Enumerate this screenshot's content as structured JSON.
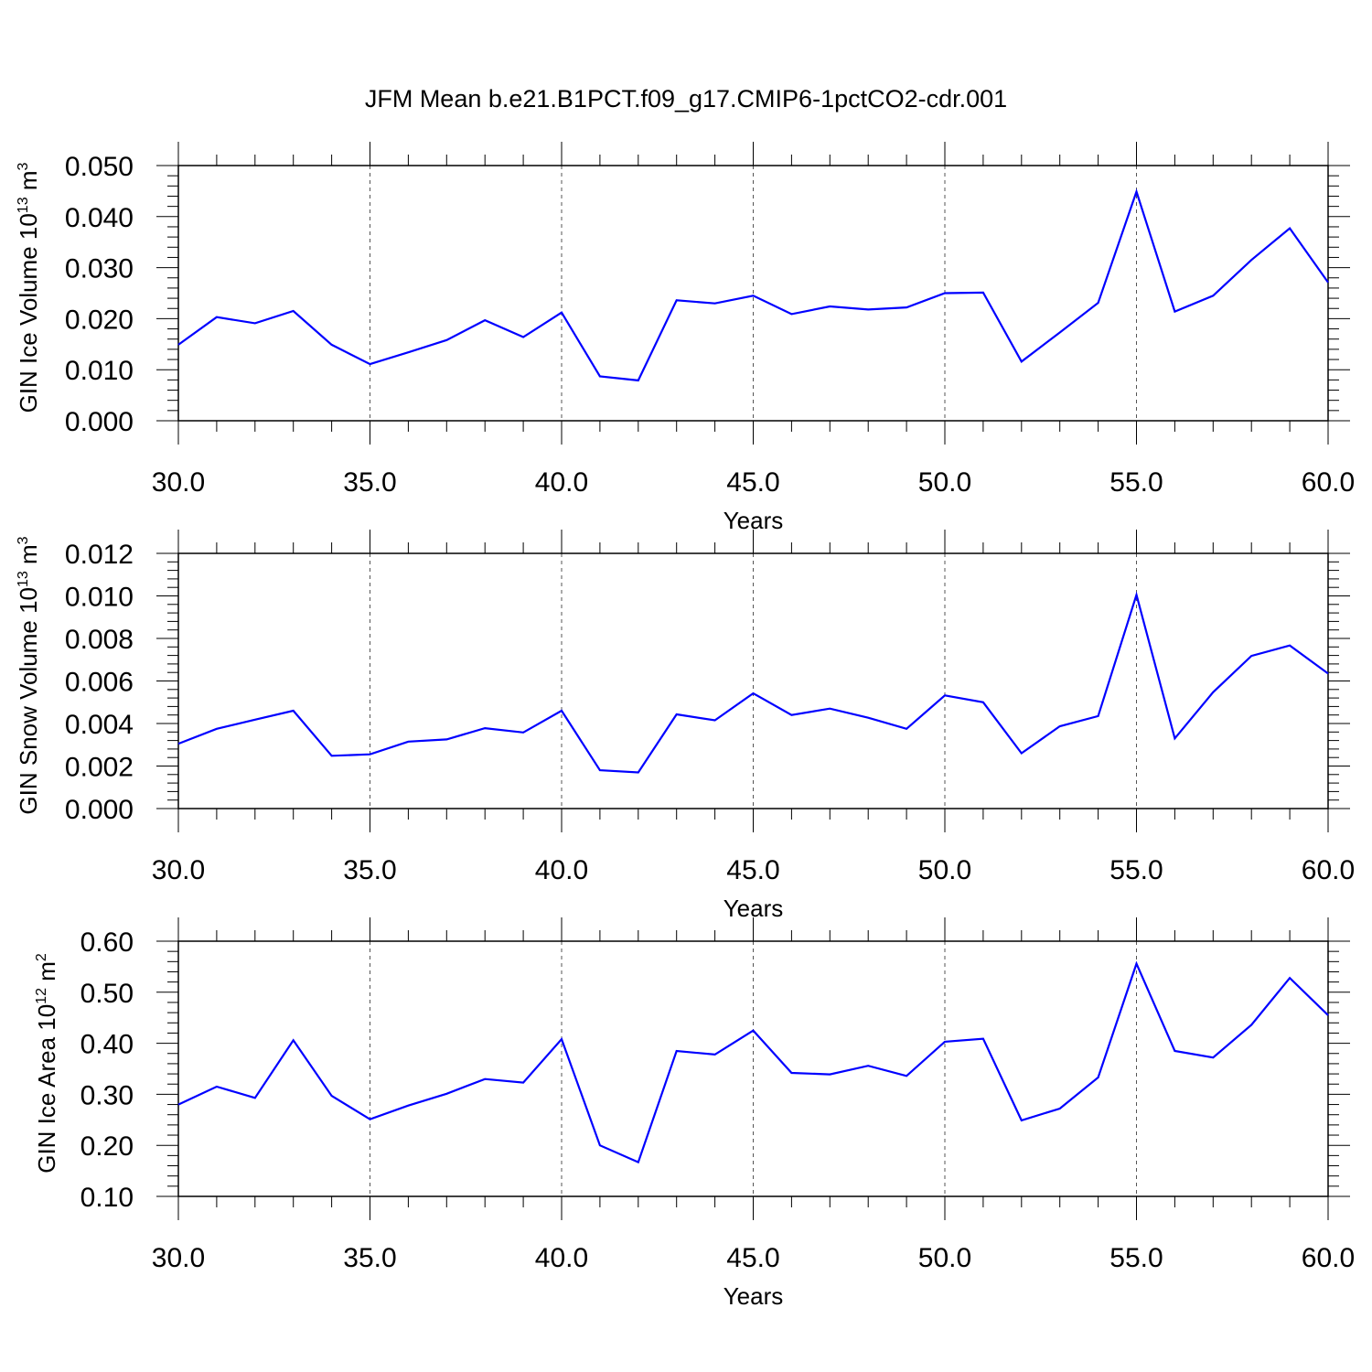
{
  "chart_data": [
    {
      "type": "line",
      "title": "JFM Mean b.e21.B1PCT.f09_g17.CMIP6-1pctCO2-cdr.001",
      "ylabel": {
        "main": "GIN Ice Volume 10",
        "exp": "13",
        "unit": " m",
        "unit_exp": "3"
      },
      "xlabel": "Years",
      "xlim": [
        30,
        60
      ],
      "ylim": [
        0.0,
        0.05
      ],
      "xticks": [
        "30.0",
        "35.0",
        "40.0",
        "45.0",
        "50.0",
        "55.0",
        "60.0"
      ],
      "yticks": [
        "0.000",
        "0.010",
        "0.020",
        "0.030",
        "0.040",
        "0.050"
      ],
      "grid": "vertical dashed at major x ticks",
      "color": "#0000ff",
      "x": [
        30,
        31,
        32,
        33,
        34,
        35,
        36,
        37,
        38,
        39,
        40,
        41,
        42,
        43,
        44,
        45,
        46,
        47,
        48,
        49,
        50,
        51,
        52,
        53,
        54,
        55,
        56,
        57,
        58,
        59,
        60
      ],
      "values": [
        0.0149,
        0.0203,
        0.0191,
        0.0215,
        0.0149,
        0.0111,
        0.0134,
        0.0158,
        0.0197,
        0.0164,
        0.0212,
        0.0087,
        0.0079,
        0.0236,
        0.023,
        0.0245,
        0.0209,
        0.0224,
        0.0218,
        0.0222,
        0.025,
        0.0251,
        0.0116,
        0.0173,
        0.0231,
        0.0449,
        0.0214,
        0.0245,
        0.0315,
        0.0377,
        0.0271
      ]
    },
    {
      "type": "line",
      "ylabel": {
        "main": "GIN Snow Volume 10",
        "exp": "13",
        "unit": " m",
        "unit_exp": "3"
      },
      "xlabel": "Years",
      "xlim": [
        30,
        60
      ],
      "ylim": [
        0.0,
        0.012
      ],
      "xticks": [
        "30.0",
        "35.0",
        "40.0",
        "45.0",
        "50.0",
        "55.0",
        "60.0"
      ],
      "yticks": [
        "0.000",
        "0.002",
        "0.004",
        "0.006",
        "0.008",
        "0.010",
        "0.012"
      ],
      "grid": "vertical dashed at major x ticks",
      "color": "#0000ff",
      "x": [
        30,
        31,
        32,
        33,
        34,
        35,
        36,
        37,
        38,
        39,
        40,
        41,
        42,
        43,
        44,
        45,
        46,
        47,
        48,
        49,
        50,
        51,
        52,
        53,
        54,
        55,
        56,
        57,
        58,
        59,
        60
      ],
      "values": [
        0.00305,
        0.00375,
        0.00418,
        0.0046,
        0.00248,
        0.00255,
        0.00315,
        0.00325,
        0.00378,
        0.00358,
        0.0046,
        0.0018,
        0.0017,
        0.00443,
        0.00415,
        0.00542,
        0.0044,
        0.0047,
        0.00427,
        0.00375,
        0.00532,
        0.005,
        0.0026,
        0.00387,
        0.00435,
        0.01005,
        0.0033,
        0.00547,
        0.00718,
        0.00767,
        0.00635
      ]
    },
    {
      "type": "line",
      "ylabel": {
        "main": "GIN Ice Area 10",
        "exp": "12",
        "unit": " m",
        "unit_exp": "2"
      },
      "xlabel": "Years",
      "xlim": [
        30,
        60
      ],
      "ylim": [
        0.1,
        0.6
      ],
      "xticks": [
        "30.0",
        "35.0",
        "40.0",
        "45.0",
        "50.0",
        "55.0",
        "60.0"
      ],
      "yticks": [
        "0.10",
        "0.20",
        "0.30",
        "0.40",
        "0.50",
        "0.60"
      ],
      "grid": "vertical dashed at major x ticks",
      "color": "#0000ff",
      "x": [
        30,
        31,
        32,
        33,
        34,
        35,
        36,
        37,
        38,
        39,
        40,
        41,
        42,
        43,
        44,
        45,
        46,
        47,
        48,
        49,
        50,
        51,
        52,
        53,
        54,
        55,
        56,
        57,
        58,
        59,
        60
      ],
      "values": [
        0.28,
        0.315,
        0.293,
        0.406,
        0.297,
        0.251,
        0.278,
        0.301,
        0.33,
        0.323,
        0.408,
        0.2,
        0.167,
        0.385,
        0.378,
        0.425,
        0.342,
        0.339,
        0.356,
        0.336,
        0.403,
        0.409,
        0.249,
        0.272,
        0.333,
        0.556,
        0.385,
        0.372,
        0.436,
        0.528,
        0.455
      ]
    }
  ]
}
